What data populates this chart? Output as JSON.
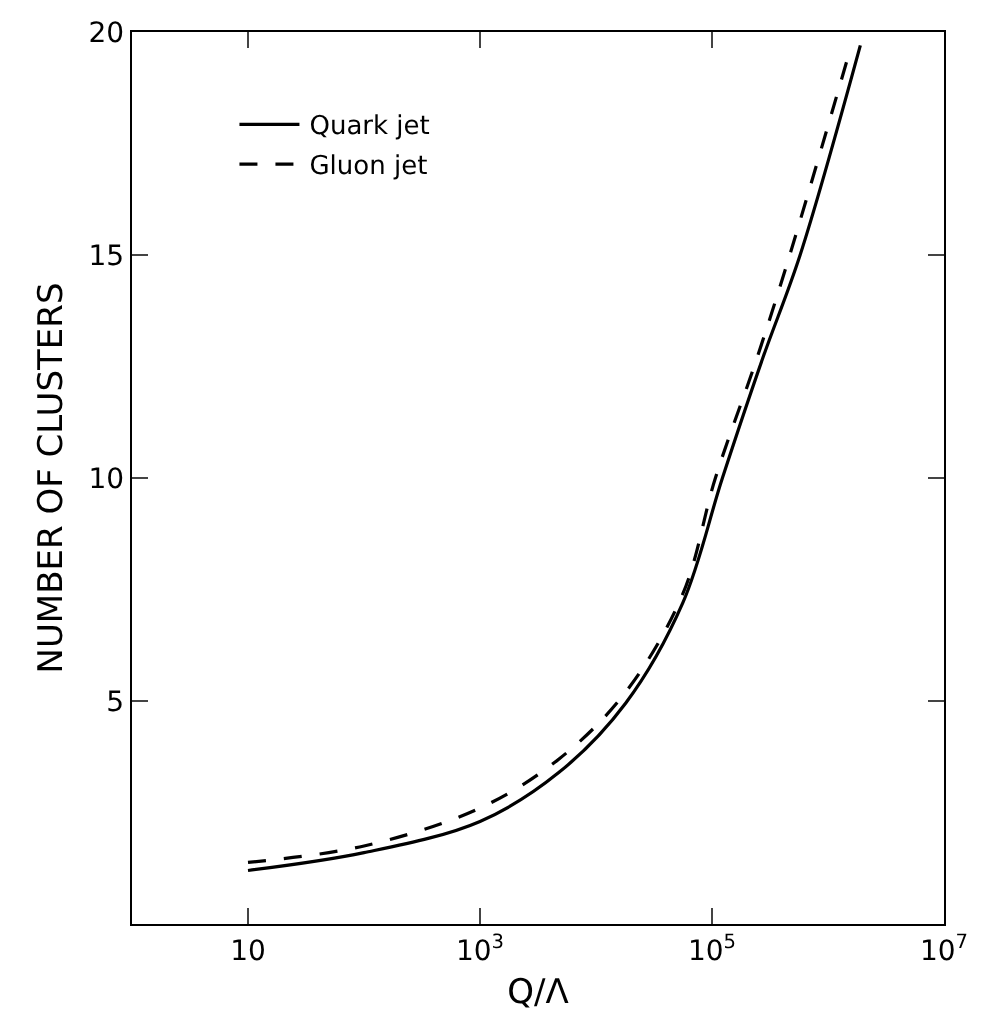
{
  "chart_data": {
    "type": "line",
    "xlabel": "Q/Λ",
    "ylabel": "NUMBER OF CLUSTERS",
    "log": "x",
    "xlim": [
      1,
      10000000
    ],
    "ylim": [
      0,
      20
    ],
    "xticks": [
      10,
      {
        "value": 1000,
        "label": "10$^{3}$"
      },
      {
        "value": 100000,
        "label": "10$^{5}$"
      },
      {
        "value": 10000000,
        "label": "10$^{7}$"
      }
    ],
    "yticks": [
      5,
      10,
      15,
      20
    ],
    "grid": false,
    "legend": "top left",
    "marker": "none",
    "series": [
      {
        "name": "Quark jet",
        "color": "#000000",
        "line_style": "solid",
        "x": [
          10,
          100,
          1000,
          4800,
          18000,
          56000,
          123000,
          275000,
          575000,
          1900000
        ],
        "values": [
          1.2,
          1.6,
          2.3,
          3.4,
          4.95,
          7.2,
          10.0,
          12.7,
          15,
          19.7
        ]
      },
      {
        "name": "Gluon jet",
        "color": "#000000",
        "line_style": "dashed",
        "x": [
          10,
          100,
          1000,
          4800,
          18000,
          56000,
          107000,
          245000,
          468000,
          1550000
        ],
        "values": [
          1.38,
          1.75,
          2.6,
          3.7,
          5.2,
          7.4,
          10.0,
          12.7,
          15,
          19.6
        ]
      }
    ]
  }
}
